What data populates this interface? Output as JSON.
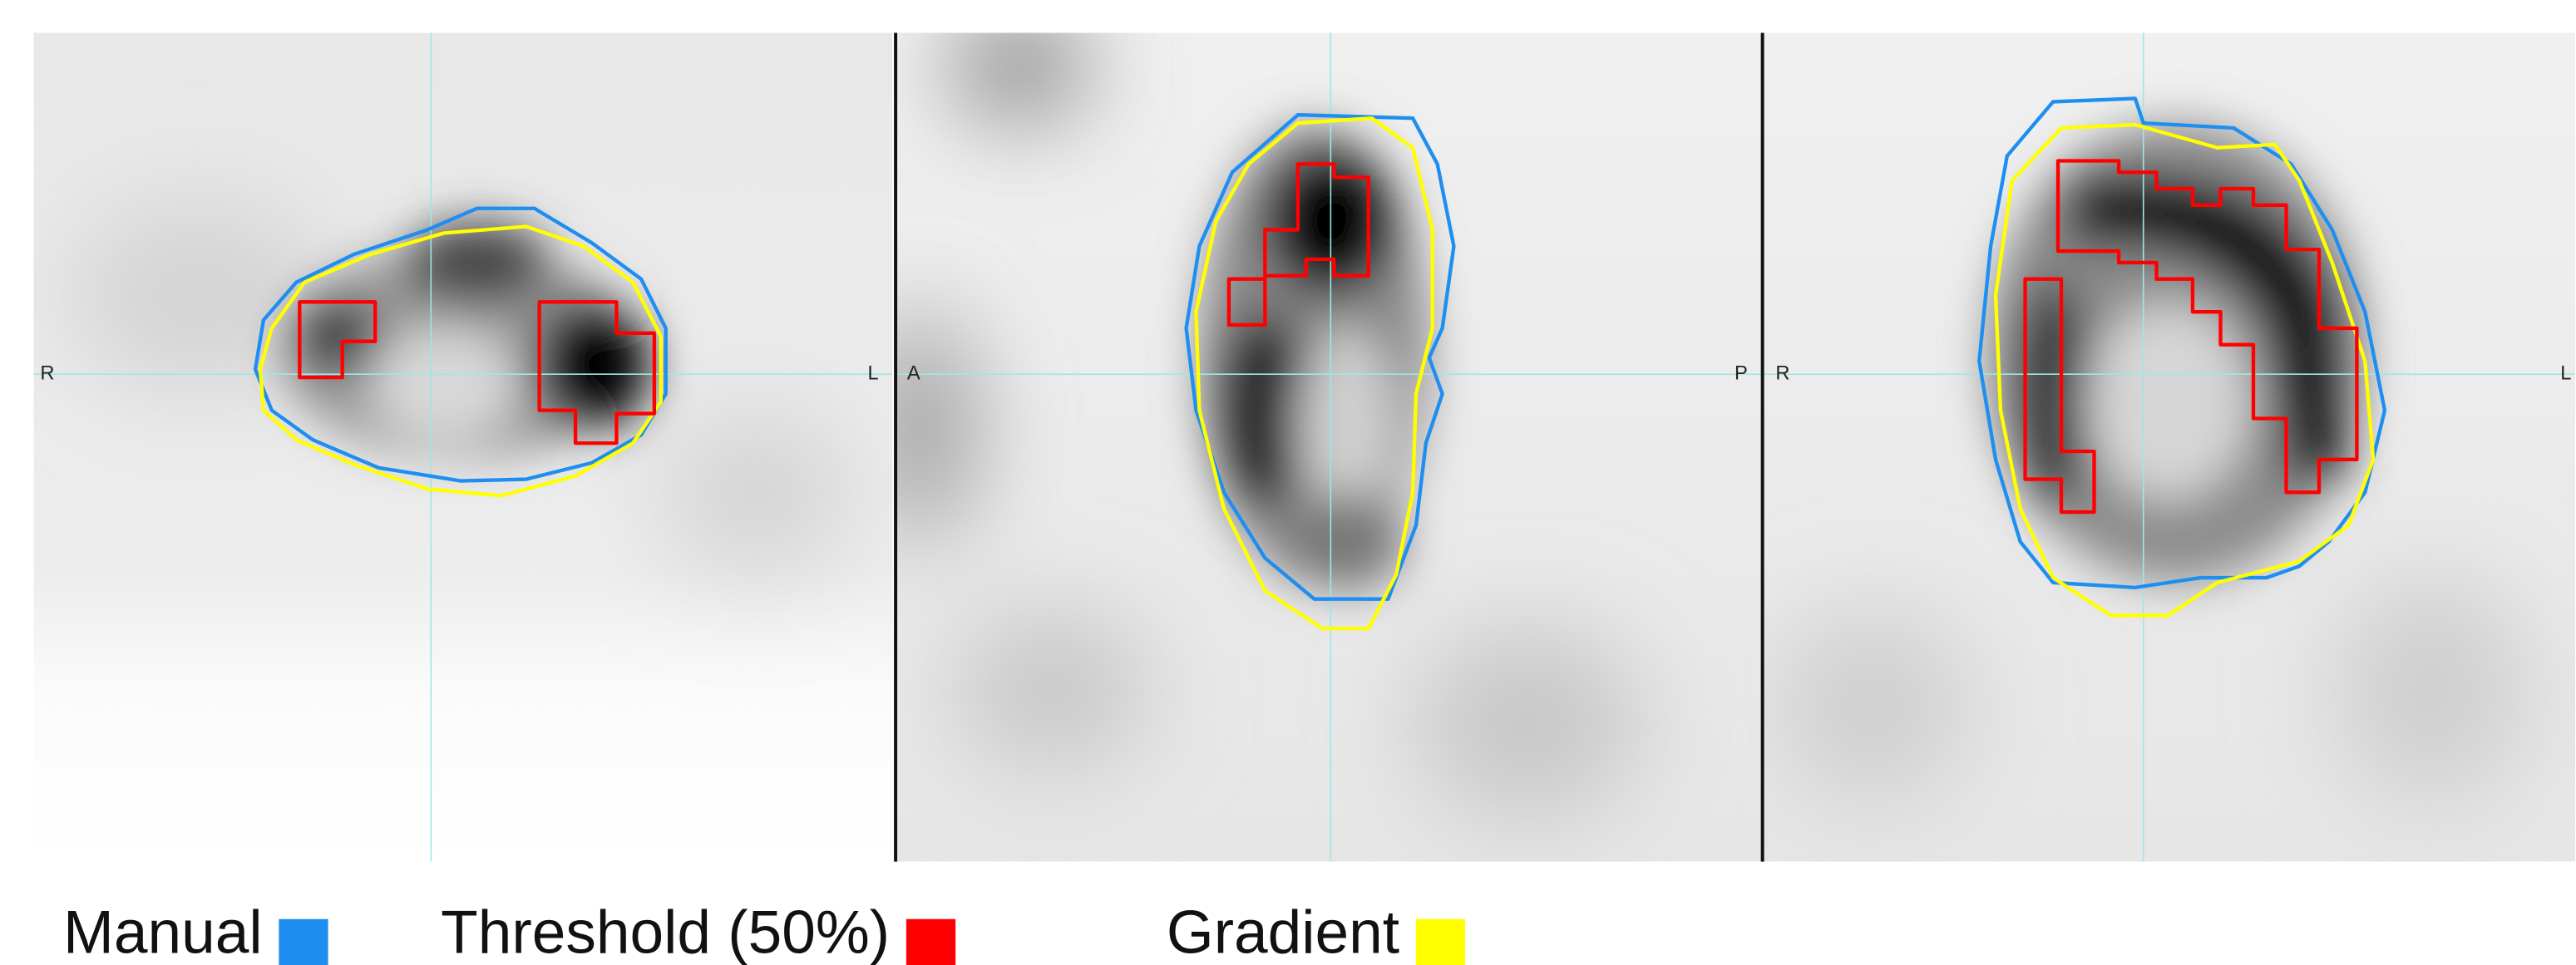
{
  "panels": [
    {
      "left_label": "R",
      "right_label": "L"
    },
    {
      "left_label": "A",
      "right_label": "P"
    },
    {
      "left_label": "R",
      "right_label": "L"
    }
  ],
  "legend": [
    {
      "label": "Manual",
      "color": "#1e8ef0"
    },
    {
      "label": "Threshold (50%)",
      "color": "#ff0000"
    },
    {
      "label": "Gradient",
      "color": "#ffff00"
    }
  ]
}
